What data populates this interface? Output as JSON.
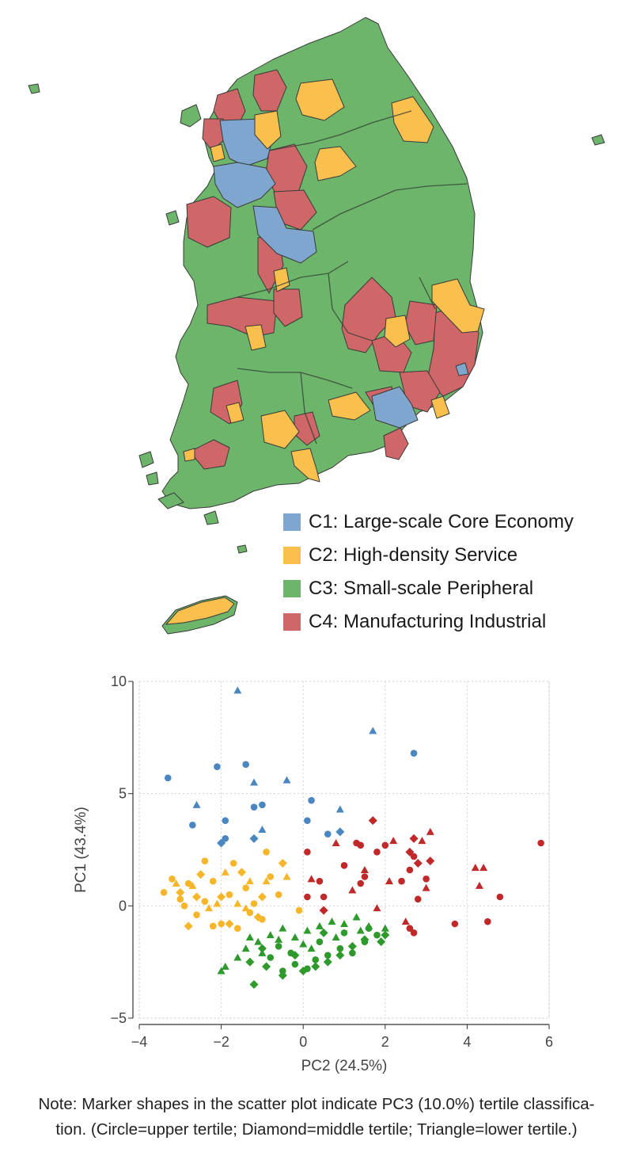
{
  "legend": {
    "items": [
      {
        "id": "C1",
        "label": "C1: Large-scale Core Economy",
        "color": "#7ea6cf"
      },
      {
        "id": "C2",
        "label": "C2: High-density Service",
        "color": "#f9c04d"
      },
      {
        "id": "C3",
        "label": "C3: Small-scale Peripheral",
        "color": "#6db56a"
      },
      {
        "id": "C4",
        "label": "C4: Manufacturing Industrial",
        "color": "#cf6668"
      }
    ]
  },
  "marker_colors": {
    "C1": "#4a86c0",
    "C2": "#f7b52a",
    "C3": "#2e9a2c",
    "C4": "#c0282a"
  },
  "note": {
    "line1": "Note: Marker shapes in the scatter plot indicate PC3 (10.0%) tertile classifica-",
    "line2": "tion. (Circle=upper tertile; Diamond=middle tertile; Triangle=lower tertile.)"
  },
  "chart_data": {
    "type": "scatter",
    "xlabel": "PC2 (24.5%)",
    "ylabel": "PC1 (43.4%)",
    "xlim": [
      -4,
      6
    ],
    "ylim": [
      -5,
      10
    ],
    "xticks": [
      -4,
      -2,
      0,
      2,
      4,
      6
    ],
    "yticks": [
      -5,
      0,
      5,
      10
    ],
    "grid": true,
    "series": [
      {
        "cluster": "C1",
        "points": [
          [
            -3.3,
            5.7,
            "c"
          ],
          [
            -2.1,
            6.2,
            "c"
          ],
          [
            -1.4,
            6.3,
            "c"
          ],
          [
            -1.2,
            4.4,
            "c"
          ],
          [
            -1.0,
            4.5,
            "c"
          ],
          [
            0.2,
            4.7,
            "c"
          ],
          [
            0.1,
            3.8,
            "c"
          ],
          [
            -2.7,
            3.6,
            "c"
          ],
          [
            -1.9,
            3.8,
            "c"
          ],
          [
            -1.9,
            3.0,
            "c"
          ],
          [
            0.6,
            3.2,
            "c"
          ],
          [
            2.7,
            6.8,
            "c"
          ],
          [
            -1.2,
            3.0,
            "d"
          ],
          [
            0.9,
            3.3,
            "d"
          ],
          [
            -2.0,
            2.8,
            "d"
          ],
          [
            -1.6,
            9.6,
            "t"
          ],
          [
            1.7,
            7.8,
            "t"
          ],
          [
            -0.4,
            5.6,
            "t"
          ],
          [
            -1.2,
            5.5,
            "t"
          ],
          [
            -2.6,
            4.5,
            "t"
          ],
          [
            0.9,
            4.3,
            "t"
          ],
          [
            -1.0,
            3.4,
            "t"
          ]
        ]
      },
      {
        "cluster": "C2",
        "points": [
          [
            -3.4,
            0.6,
            "c"
          ],
          [
            -3.2,
            1.2,
            "c"
          ],
          [
            -3.0,
            0.3,
            "c"
          ],
          [
            -2.8,
            1.0,
            "c"
          ],
          [
            -2.6,
            -0.4,
            "c"
          ],
          [
            -2.4,
            0.2,
            "c"
          ],
          [
            -2.2,
            1.1,
            "c"
          ],
          [
            -2.0,
            -0.8,
            "c"
          ],
          [
            -1.8,
            0.5,
            "c"
          ],
          [
            -1.6,
            -1.0,
            "c"
          ],
          [
            -1.4,
            0.8,
            "c"
          ],
          [
            -1.2,
            0.1,
            "c"
          ],
          [
            -1.0,
            -0.6,
            "c"
          ],
          [
            -0.8,
            1.3,
            "c"
          ],
          [
            -0.6,
            0.5,
            "c"
          ],
          [
            -0.9,
            2.4,
            "c"
          ],
          [
            -1.7,
            1.9,
            "c"
          ],
          [
            -2.4,
            2.0,
            "c"
          ],
          [
            -0.1,
            -0.2,
            "c"
          ],
          [
            -2.9,
            0.0,
            "c"
          ],
          [
            -1.3,
            -0.3,
            "c"
          ],
          [
            -2.2,
            -0.9,
            "c"
          ],
          [
            -2.8,
            -0.9,
            "d"
          ],
          [
            -2.5,
            1.4,
            "d"
          ],
          [
            -2.0,
            0.4,
            "d"
          ],
          [
            -1.5,
            1.5,
            "d"
          ],
          [
            -1.0,
            0.4,
            "d"
          ],
          [
            -3.0,
            0.6,
            "d"
          ],
          [
            -1.8,
            -0.8,
            "d"
          ],
          [
            -1.1,
            -0.5,
            "d"
          ],
          [
            -0.5,
            1.9,
            "d"
          ],
          [
            -2.6,
            0.4,
            "d"
          ],
          [
            -3.1,
            1.0,
            "t"
          ],
          [
            -2.3,
            -0.1,
            "t"
          ],
          [
            -1.9,
            1.5,
            "t"
          ],
          [
            -1.4,
            -0.1,
            "t"
          ],
          [
            -0.9,
            1.1,
            "t"
          ],
          [
            -0.4,
            1.3,
            "t"
          ],
          [
            -2.7,
            0.9,
            "t"
          ],
          [
            -1.6,
            0.1,
            "t"
          ],
          [
            -1.3,
            1.1,
            "t"
          ],
          [
            -2.1,
            0.1,
            "t"
          ]
        ]
      },
      {
        "cluster": "C3",
        "points": [
          [
            -0.8,
            -2.3,
            "c"
          ],
          [
            -0.5,
            -2.9,
            "c"
          ],
          [
            -0.2,
            -2.6,
            "c"
          ],
          [
            0.1,
            -2.8,
            "c"
          ],
          [
            0.3,
            -2.4,
            "c"
          ],
          [
            0.6,
            -2.2,
            "c"
          ],
          [
            0.9,
            -1.9,
            "c"
          ],
          [
            1.2,
            -2.1,
            "c"
          ],
          [
            1.5,
            -1.6,
            "c"
          ],
          [
            1.8,
            -1.3,
            "c"
          ],
          [
            -0.6,
            -1.8,
            "c"
          ],
          [
            0.4,
            -1.6,
            "c"
          ],
          [
            1.0,
            -1.2,
            "c"
          ],
          [
            1.6,
            -1.0,
            "c"
          ],
          [
            -0.3,
            -2.1,
            "c"
          ],
          [
            -1.3,
            -2.5,
            "d"
          ],
          [
            -1.0,
            -1.9,
            "d"
          ],
          [
            -0.5,
            -3.1,
            "d"
          ],
          [
            -0.2,
            -2.2,
            "d"
          ],
          [
            0.0,
            -2.9,
            "d"
          ],
          [
            0.3,
            -2.7,
            "d"
          ],
          [
            0.6,
            -2.5,
            "d"
          ],
          [
            0.9,
            -2.2,
            "d"
          ],
          [
            1.2,
            -1.8,
            "d"
          ],
          [
            1.5,
            -1.5,
            "d"
          ],
          [
            2.0,
            -1.3,
            "d"
          ],
          [
            -1.2,
            -3.5,
            "d"
          ],
          [
            -0.9,
            -2.7,
            "d"
          ],
          [
            0.5,
            -1.2,
            "d"
          ],
          [
            1.9,
            -1.6,
            "d"
          ],
          [
            -1.9,
            -2.7,
            "t"
          ],
          [
            -1.6,
            -2.3,
            "t"
          ],
          [
            -1.4,
            -1.9,
            "t"
          ],
          [
            -1.1,
            -1.6,
            "t"
          ],
          [
            -0.8,
            -1.3,
            "t"
          ],
          [
            -0.5,
            -1.0,
            "t"
          ],
          [
            -0.2,
            -1.4,
            "t"
          ],
          [
            0.1,
            -1.1,
            "t"
          ],
          [
            0.4,
            -0.9,
            "t"
          ],
          [
            0.7,
            -0.7,
            "t"
          ],
          [
            1.0,
            -0.8,
            "t"
          ],
          [
            1.3,
            -0.5,
            "t"
          ],
          [
            1.6,
            -0.9,
            "t"
          ],
          [
            2.0,
            -1.0,
            "t"
          ],
          [
            -1.0,
            -2.1,
            "t"
          ],
          [
            -0.6,
            -1.5,
            "t"
          ],
          [
            0.2,
            -1.9,
            "t"
          ],
          [
            0.8,
            -1.4,
            "t"
          ],
          [
            1.4,
            -1.1,
            "t"
          ],
          [
            -2.0,
            -2.9,
            "t"
          ],
          [
            -1.3,
            -1.4,
            "t"
          ],
          [
            0.0,
            -1.7,
            "t"
          ]
        ]
      },
      {
        "cluster": "C4",
        "points": [
          [
            0.4,
            1.1,
            "c"
          ],
          [
            0.5,
            0.4,
            "c"
          ],
          [
            1.0,
            1.8,
            "c"
          ],
          [
            1.3,
            2.8,
            "c"
          ],
          [
            1.4,
            1.0,
            "c"
          ],
          [
            1.5,
            1.3,
            "c"
          ],
          [
            2.0,
            2.7,
            "c"
          ],
          [
            2.4,
            1.1,
            "c"
          ],
          [
            2.6,
            1.6,
            "c"
          ],
          [
            2.7,
            2.2,
            "c"
          ],
          [
            2.8,
            0.3,
            "c"
          ],
          [
            3.0,
            1.2,
            "c"
          ],
          [
            2.6,
            -1.0,
            "c"
          ],
          [
            2.7,
            -1.2,
            "c"
          ],
          [
            3.7,
            -0.8,
            "c"
          ],
          [
            4.5,
            -0.7,
            "c"
          ],
          [
            4.8,
            0.4,
            "c"
          ],
          [
            5.8,
            2.8,
            "c"
          ],
          [
            0.1,
            2.4,
            "c"
          ],
          [
            0.1,
            0.4,
            "c"
          ],
          [
            1.8,
            2.4,
            "c"
          ],
          [
            1.4,
            2.7,
            "c"
          ],
          [
            1.7,
            3.8,
            "d"
          ],
          [
            0.5,
            -0.2,
            "d"
          ],
          [
            2.8,
            1.9,
            "d"
          ],
          [
            3.1,
            2.0,
            "d"
          ],
          [
            2.6,
            2.4,
            "d"
          ],
          [
            2.7,
            3.0,
            "d"
          ],
          [
            0.2,
            1.2,
            "t"
          ],
          [
            0.8,
            2.8,
            "t"
          ],
          [
            1.5,
            1.6,
            "t"
          ],
          [
            1.2,
            0.7,
            "t"
          ],
          [
            2.2,
            2.9,
            "t"
          ],
          [
            2.1,
            1.1,
            "t"
          ],
          [
            2.5,
            -0.7,
            "t"
          ],
          [
            3.0,
            0.8,
            "t"
          ],
          [
            3.1,
            3.3,
            "t"
          ],
          [
            4.2,
            1.7,
            "t"
          ],
          [
            4.4,
            1.7,
            "t"
          ],
          [
            4.3,
            0.9,
            "t"
          ],
          [
            1.8,
            -0.1,
            "t"
          ],
          [
            2.9,
            2.9,
            "t"
          ]
        ]
      }
    ]
  }
}
